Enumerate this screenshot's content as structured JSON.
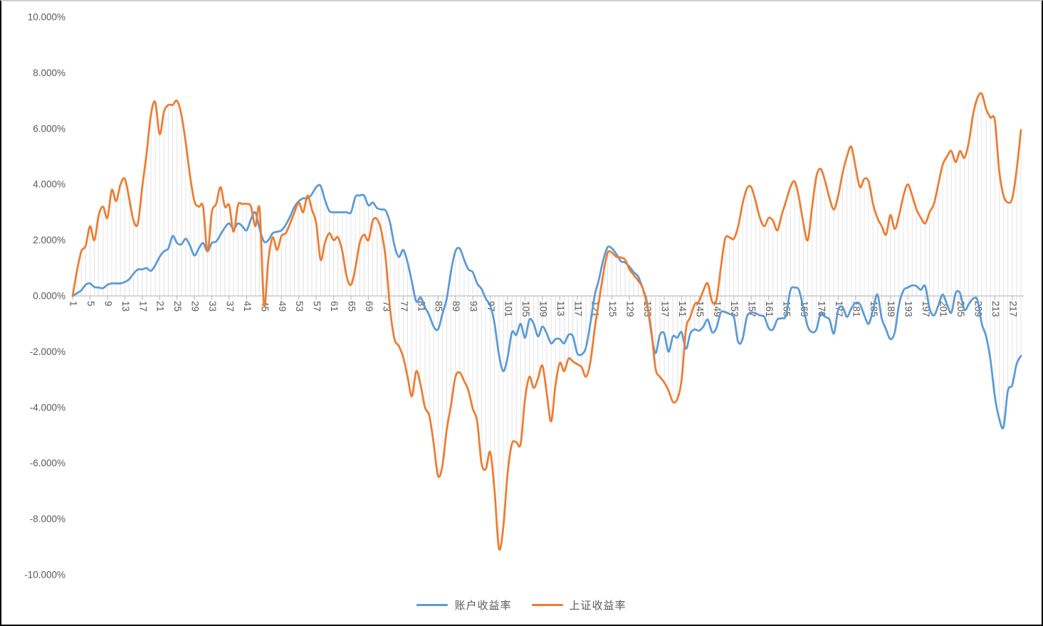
{
  "chart_data": {
    "type": "line",
    "title": "",
    "xlabel": "",
    "ylabel": "",
    "x_count": 219,
    "x_tick_labels": [
      "1",
      "5",
      "9",
      "13",
      "17",
      "21",
      "25",
      "29",
      "33",
      "37",
      "41",
      "45",
      "49",
      "53",
      "57",
      "61",
      "65",
      "69",
      "73",
      "77",
      "81",
      "85",
      "89",
      "93",
      "97",
      "101",
      "105",
      "109",
      "113",
      "117",
      "121",
      "125",
      "129",
      "133",
      "137",
      "141",
      "145",
      "149",
      "153",
      "157",
      "161",
      "165",
      "169",
      "173",
      "177",
      "181",
      "185",
      "189",
      "193",
      "197",
      "201",
      "205",
      "209",
      "213",
      "217"
    ],
    "y_tick_labels": [
      "10.000%",
      "8.000%",
      "6.000%",
      "4.000%",
      "2.000%",
      "0.000%",
      "-2.000%",
      "-4.000%",
      "-6.000%",
      "-8.000%",
      "-10.000%"
    ],
    "y_axis": {
      "min": -10,
      "max": 10,
      "step": 2,
      "unit": "%",
      "format": "0.000%"
    },
    "grid": "vertical-drop-lines-per-point",
    "legend_position": "bottom-center",
    "series": [
      {
        "name": "账户收益率",
        "color": "#5B9BD5",
        "values": [
          0.0,
          0.1,
          0.2,
          0.4,
          0.45,
          0.32,
          0.3,
          0.28,
          0.4,
          0.45,
          0.45,
          0.45,
          0.5,
          0.6,
          0.8,
          0.95,
          0.95,
          1.0,
          0.9,
          1.1,
          1.4,
          1.6,
          1.7,
          2.15,
          1.9,
          1.85,
          2.05,
          1.8,
          1.45,
          1.7,
          1.9,
          1.6,
          1.9,
          1.95,
          2.2,
          2.45,
          2.6,
          2.4,
          2.6,
          2.5,
          2.35,
          2.75,
          3.0,
          2.4,
          1.95,
          2.0,
          2.25,
          2.3,
          2.35,
          2.55,
          2.85,
          3.2,
          3.4,
          3.5,
          3.5,
          3.65,
          3.9,
          3.95,
          3.45,
          3.05,
          3.0,
          3.0,
          3.0,
          3.0,
          3.0,
          3.55,
          3.6,
          3.6,
          3.25,
          3.35,
          3.15,
          3.1,
          3.05,
          2.6,
          1.8,
          1.4,
          1.65,
          1.2,
          0.5,
          -0.2,
          -0.05,
          -0.4,
          -0.7,
          -1.1,
          -1.2,
          -0.65,
          -0.1,
          0.9,
          1.6,
          1.7,
          1.3,
          0.95,
          0.85,
          0.45,
          0.25,
          -0.1,
          -0.35,
          -1.0,
          -2.1,
          -2.7,
          -2.2,
          -1.3,
          -1.4,
          -1.0,
          -1.5,
          -0.85,
          -1.0,
          -1.45,
          -1.1,
          -1.35,
          -1.7,
          -1.55,
          -1.55,
          -1.7,
          -1.4,
          -1.45,
          -2.05,
          -2.1,
          -1.85,
          -1.0,
          0.0,
          0.6,
          1.3,
          1.75,
          1.7,
          1.5,
          1.25,
          1.2,
          1.05,
          0.85,
          0.7,
          0.3,
          -0.2,
          -1.3,
          -2.05,
          -1.4,
          -1.35,
          -2.0,
          -1.45,
          -1.5,
          -1.3,
          -1.9,
          -1.35,
          -1.2,
          -1.25,
          -1.1,
          -0.85,
          -1.3,
          -1.15,
          -0.6,
          -0.58,
          -0.65,
          -0.75,
          -1.65,
          -1.55,
          -0.75,
          -0.6,
          -0.62,
          -0.7,
          -0.75,
          -1.15,
          -1.2,
          -0.85,
          -0.8,
          -0.7,
          0.2,
          0.3,
          0.2,
          -0.45,
          -1.1,
          -1.3,
          -1.2,
          -0.6,
          -0.75,
          -0.85,
          -1.35,
          -0.5,
          -0.4,
          -0.75,
          -0.45,
          -0.25,
          -0.3,
          -0.7,
          -1.0,
          -0.5,
          0.05,
          -0.8,
          -1.2,
          -1.55,
          -1.3,
          -0.3,
          0.2,
          0.3,
          0.38,
          0.35,
          0.22,
          0.35,
          -0.45,
          -0.7,
          -0.35,
          0.05,
          -0.3,
          -0.6,
          0.1,
          0.1,
          -0.5,
          -0.3,
          -0.1,
          -0.15,
          -1.0,
          -1.45,
          -2.3,
          -3.6,
          -4.4,
          -4.7,
          -3.4,
          -3.2,
          -2.45,
          -2.15
        ]
      },
      {
        "name": "上证收益率",
        "color": "#ED7D31",
        "values": [
          0.0,
          0.9,
          1.6,
          1.8,
          2.5,
          2.0,
          2.9,
          3.2,
          2.8,
          3.8,
          3.4,
          4.0,
          4.2,
          3.5,
          2.7,
          2.6,
          3.9,
          5.1,
          6.5,
          6.95,
          5.8,
          6.6,
          6.85,
          6.85,
          7.0,
          6.5,
          5.5,
          4.3,
          3.4,
          3.2,
          3.2,
          1.6,
          3.0,
          3.3,
          3.9,
          3.2,
          3.25,
          2.3,
          3.25,
          3.3,
          3.3,
          3.2,
          2.5,
          3.1,
          -0.35,
          1.3,
          2.1,
          1.65,
          2.15,
          2.25,
          2.6,
          3.0,
          3.35,
          3.0,
          3.6,
          3.1,
          2.6,
          1.3,
          1.9,
          2.25,
          2.0,
          2.1,
          1.6,
          0.7,
          0.4,
          1.0,
          1.9,
          2.2,
          2.0,
          2.7,
          2.75,
          2.3,
          1.3,
          -0.5,
          -1.55,
          -1.8,
          -2.2,
          -2.9,
          -3.6,
          -2.7,
          -3.2,
          -4.0,
          -4.3,
          -5.3,
          -6.45,
          -6.1,
          -4.8,
          -3.9,
          -2.9,
          -2.75,
          -3.05,
          -3.4,
          -4.05,
          -4.5,
          -6.0,
          -6.2,
          -5.6,
          -7.0,
          -9.05,
          -8.3,
          -6.35,
          -5.3,
          -5.25,
          -5.3,
          -3.7,
          -2.9,
          -3.3,
          -2.95,
          -2.5,
          -3.5,
          -4.5,
          -3.2,
          -2.4,
          -2.7,
          -2.25,
          -2.35,
          -2.45,
          -2.55,
          -2.9,
          -2.4,
          -1.2,
          -0.2,
          0.8,
          1.55,
          1.55,
          1.4,
          1.38,
          1.3,
          0.95,
          0.75,
          0.55,
          0.3,
          -0.3,
          -1.2,
          -2.6,
          -2.9,
          -3.1,
          -3.4,
          -3.8,
          -3.7,
          -3.0,
          -1.2,
          -0.75,
          -0.3,
          -0.2,
          0.2,
          0.45,
          -0.2,
          -0.15,
          1.0,
          2.05,
          2.1,
          2.05,
          2.5,
          3.3,
          3.85,
          3.9,
          3.4,
          2.8,
          2.5,
          2.8,
          2.7,
          2.35,
          2.9,
          3.4,
          3.9,
          4.1,
          3.5,
          2.6,
          2.0,
          3.2,
          4.3,
          4.55,
          4.1,
          3.5,
          3.1,
          3.6,
          4.4,
          5.0,
          5.35,
          4.6,
          3.9,
          4.2,
          4.1,
          3.3,
          2.8,
          2.5,
          2.2,
          2.9,
          2.4,
          2.9,
          3.6,
          4.0,
          3.6,
          3.1,
          2.8,
          2.6,
          3.0,
          3.3,
          4.0,
          4.7,
          5.0,
          5.2,
          4.8,
          5.2,
          4.95,
          5.5,
          6.5,
          7.1,
          7.25,
          6.7,
          6.4,
          6.3,
          4.5,
          3.6,
          3.35,
          3.5,
          4.5,
          5.95
        ]
      }
    ]
  },
  "colors": {
    "series_blue": "#5B9BD5",
    "series_orange": "#ED7D31",
    "drop_line": "#E2E2E2",
    "axis_line": "#BFBFBF",
    "tick_text": "#595959"
  }
}
